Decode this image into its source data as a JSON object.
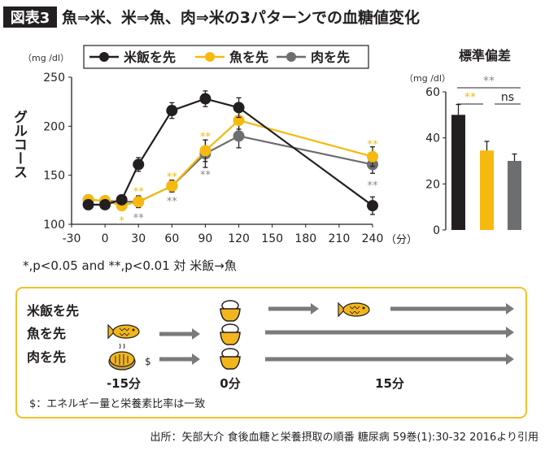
{
  "header": {
    "badge": "図表3",
    "title": "魚⇒米、米⇒魚、肉⇒米の3パターンでの血糖値変化"
  },
  "colors": {
    "rice_first": "#231f20",
    "fish_first": "#f6b90f",
    "meat_first": "#6d6e70",
    "frame": "#f2c029"
  },
  "chart_data": [
    {
      "type": "line",
      "ylabel": "グルコース",
      "unit": "（mg /dl）",
      "xunit": "（分）",
      "x": [
        -15,
        0,
        15,
        30,
        60,
        90,
        120,
        240
      ],
      "xticks": [
        -30,
        0,
        30,
        60,
        90,
        120,
        150,
        180,
        210,
        240
      ],
      "yticks": [
        100,
        150,
        200,
        250
      ],
      "xlim": [
        -30,
        240
      ],
      "ylim": [
        100,
        250
      ],
      "legend": "top",
      "series": [
        {
          "name": "米飯を先",
          "color": "#231f20",
          "values": [
            120,
            120,
            125,
            161,
            216,
            228,
            219,
            119
          ],
          "err": [
            3,
            3,
            4,
            7,
            8,
            8,
            10,
            9
          ]
        },
        {
          "name": "魚を先",
          "color": "#f6b90f",
          "values": [
            125,
            124,
            119,
            123,
            139,
            175,
            206,
            169
          ],
          "err": [
            3,
            3,
            3,
            5,
            6,
            11,
            9,
            10
          ]
        },
        {
          "name": "肉を先",
          "color": "#6d6e70",
          "values": [
            125,
            124,
            123,
            123,
            139,
            172,
            190,
            161
          ],
          "err": [
            3,
            3,
            3,
            6,
            6,
            14,
            12,
            9
          ]
        }
      ],
      "significance": [
        {
          "x": 15,
          "label": "*",
          "series": "魚を先",
          "pos": "below",
          "y": 104
        },
        {
          "x": 30,
          "label": "**",
          "series": "魚を先",
          "pos": "above",
          "y": 134
        },
        {
          "x": 30,
          "label": "**",
          "series": "肉を先",
          "pos": "below",
          "y": 107
        },
        {
          "x": 60,
          "label": "**",
          "series": "魚を先",
          "pos": "above",
          "y": 149
        },
        {
          "x": 60,
          "label": "**",
          "series": "肉を先",
          "pos": "below",
          "y": 124
        },
        {
          "x": 90,
          "label": "**",
          "series": "魚を先",
          "pos": "above",
          "y": 190
        },
        {
          "x": 90,
          "label": "**",
          "series": "肉を先",
          "pos": "below",
          "y": 151
        },
        {
          "x": 240,
          "label": "**",
          "series": "魚を先",
          "pos": "above",
          "y": 182
        },
        {
          "x": 240,
          "label": "**",
          "series": "肉を先",
          "pos": "below",
          "y": 140
        }
      ],
      "note": "*,p<0.05 and **,p<0.01 対 米飯→魚"
    },
    {
      "type": "bar",
      "title": "標準偏差",
      "unit": "（mg /dl）",
      "categories": [
        "米飯を先",
        "魚を先",
        "肉を先"
      ],
      "values": [
        50,
        34.5,
        30
      ],
      "err": [
        4.5,
        4,
        3
      ],
      "colors": [
        "#231f20",
        "#f6b90f",
        "#6d6e70"
      ],
      "yticks": [
        0,
        20,
        40,
        60
      ],
      "ylim": [
        0,
        60
      ],
      "significance": [
        {
          "label": "**",
          "between": [
            "米飯を先",
            "肉を先"
          ],
          "color": "#888888"
        },
        {
          "label": "**",
          "between": [
            "米飯を先",
            "魚を先"
          ],
          "color": "#f6b90f"
        },
        {
          "label": "ns",
          "between": [
            "魚を先",
            "肉を先"
          ],
          "color": "#231f20"
        }
      ]
    }
  ],
  "diagram": {
    "rows": [
      "米飯を先",
      "魚を先",
      "肉を先"
    ],
    "times": [
      "-15分",
      "0分",
      "15分"
    ],
    "dollar": "$",
    "footnote": "$：エネルギー量と栄養素比率は一致"
  },
  "source": "出所：矢部大介 食後血糖と栄養摂取の順番 糖尿病 59巻(1):30-32 2016より引用"
}
